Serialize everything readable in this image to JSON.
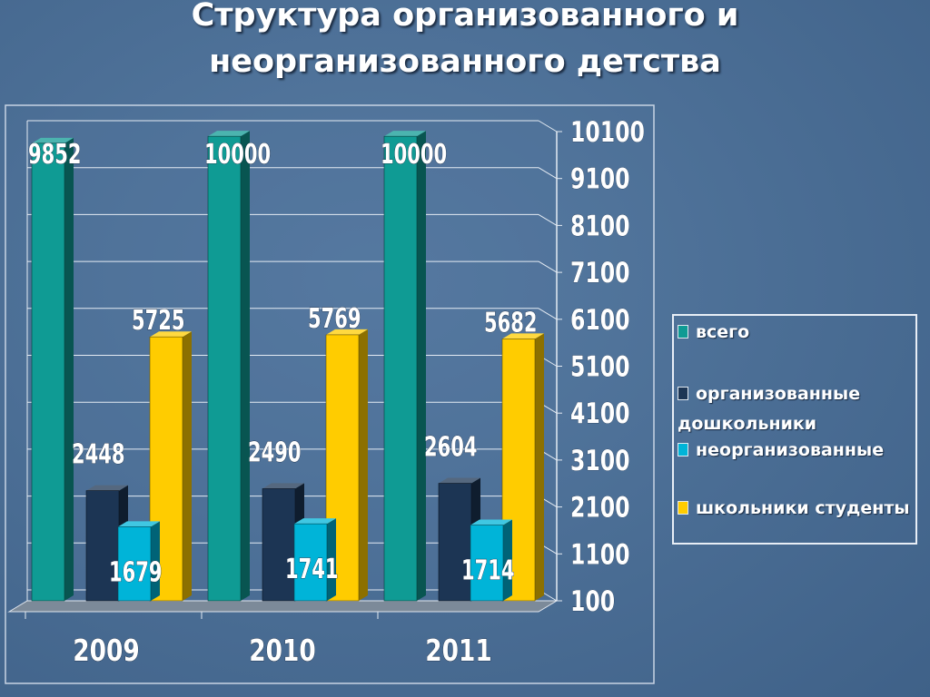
{
  "title_line1": "Структура организованного и",
  "title_line2": "неорганизованного детства",
  "chart_data": {
    "type": "bar",
    "categories": [
      "2009",
      "2010",
      "2011"
    ],
    "series": [
      {
        "name": "всего",
        "values": [
          9852,
          10000,
          10000
        ],
        "color": "#0f9b94"
      },
      {
        "name": "организованные дошкольники",
        "values": [
          2448,
          2490,
          2604
        ],
        "color": "#1c3554"
      },
      {
        "name": "неорганизованные",
        "values": [
          1679,
          1741,
          1714
        ],
        "color": "#00b4d8"
      },
      {
        "name": "школьники студенты",
        "values": [
          5725,
          5769,
          5682
        ],
        "color": "#ffcc00"
      }
    ],
    "yticks": [
      "100",
      "1100",
      "2100",
      "3100",
      "4100",
      "5100",
      "6100",
      "7100",
      "8100",
      "9100",
      "10100"
    ],
    "ylim": [
      100,
      10100
    ],
    "grid": true,
    "legend_position": "right"
  }
}
